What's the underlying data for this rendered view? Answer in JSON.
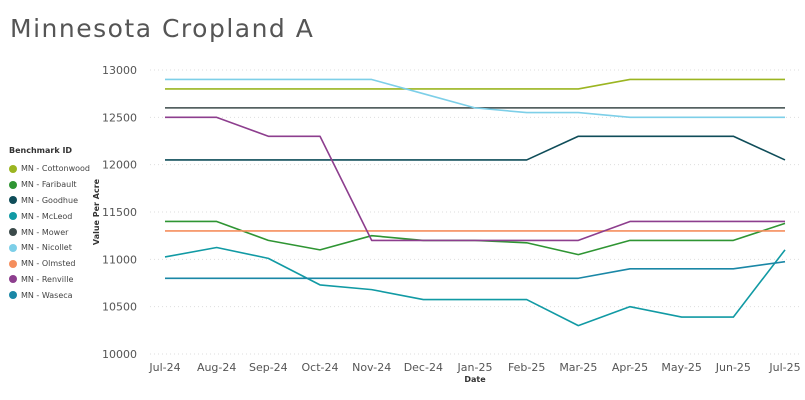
{
  "chart_data": {
    "type": "line",
    "title": "Minnesota Cropland A",
    "xlabel": "Date",
    "ylabel": "Value Per Acre",
    "legend_title": "Benchmark ID",
    "legend_position": "left",
    "grid": true,
    "ylim": [
      10000,
      13000
    ],
    "yticks": [
      10000,
      10500,
      11000,
      11500,
      12000,
      12500,
      13000
    ],
    "categories": [
      "Jul-24",
      "Aug-24",
      "Sep-24",
      "Oct-24",
      "Nov-24",
      "Dec-24",
      "Jan-25",
      "Feb-25",
      "Mar-25",
      "Apr-25",
      "May-25",
      "Jun-25",
      "Jul-25"
    ],
    "series": [
      {
        "name": "MN - Cottonwood",
        "color": "#9bb521",
        "values": [
          12800,
          12800,
          12800,
          12800,
          12800,
          12800,
          12800,
          12800,
          12800,
          12900,
          12900,
          12900,
          12900
        ]
      },
      {
        "name": "MN - Faribault",
        "color": "#2f9533",
        "values": [
          11400,
          11400,
          11200,
          11100,
          11250,
          11200,
          11200,
          11175,
          11050,
          11200,
          11200,
          11200,
          11380
        ]
      },
      {
        "name": "MN - Goodhue",
        "color": "#0f4d59",
        "values": [
          12050,
          12050,
          12050,
          12050,
          12050,
          12050,
          12050,
          12050,
          12300,
          12300,
          12300,
          12300,
          12050
        ]
      },
      {
        "name": "MN - McLeod",
        "color": "#119aa4",
        "values": [
          11025,
          11125,
          11010,
          10730,
          10680,
          10575,
          10575,
          10575,
          10300,
          10500,
          10390,
          10390,
          11100
        ]
      },
      {
        "name": "MN - Mower",
        "color": "#3b4a4a",
        "values": [
          12600,
          12600,
          12600,
          12600,
          12600,
          12600,
          12600,
          12600,
          12600,
          12600,
          12600,
          12600,
          12600
        ]
      },
      {
        "name": "MN - Nicollet",
        "color": "#7dcfe8",
        "values": [
          12900,
          12900,
          12900,
          12900,
          12900,
          12750,
          12600,
          12550,
          12550,
          12500,
          12500,
          12500,
          12500
        ]
      },
      {
        "name": "MN - Olmsted",
        "color": "#f58e5d",
        "values": [
          11300,
          11300,
          11300,
          11300,
          11300,
          11300,
          11300,
          11300,
          11300,
          11300,
          11300,
          11300,
          11300
        ]
      },
      {
        "name": "MN - Renville",
        "color": "#8d3e8e",
        "values": [
          12500,
          12500,
          12300,
          12300,
          11200,
          11200,
          11200,
          11200,
          11200,
          11400,
          11400,
          11400,
          11400
        ]
      },
      {
        "name": "MN - Waseca",
        "color": "#1a87a6",
        "values": [
          10800,
          10800,
          10800,
          10800,
          10800,
          10800,
          10800,
          10800,
          10800,
          10900,
          10900,
          10900,
          10975
        ]
      }
    ]
  }
}
